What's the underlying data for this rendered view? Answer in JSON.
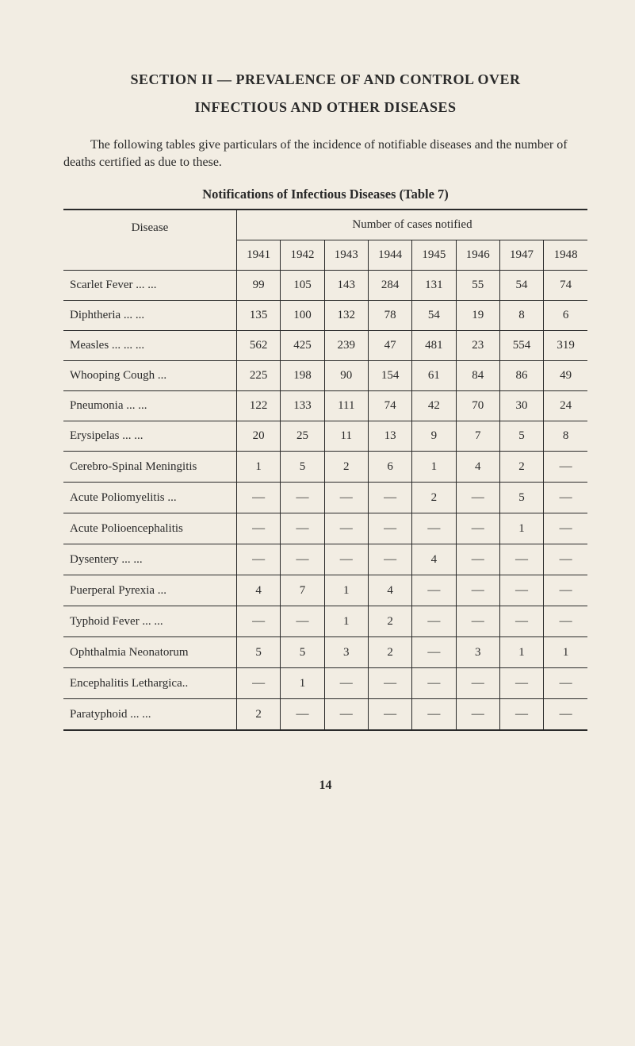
{
  "section_heading_line1": "SECTION II — PREVALENCE OF AND CONTROL OVER",
  "section_heading_line2": "INFECTIOUS AND OTHER DISEASES",
  "intro_para": "The following tables give particulars of the incidence of notifiable diseases and the number of deaths certified as due to these.",
  "table_title": "Notifications of Infectious Diseases (Table 7)",
  "table": {
    "type": "table",
    "disease_header": "Disease",
    "number_header": "Number of cases notified",
    "years": [
      "1941",
      "1942",
      "1943",
      "1944",
      "1945",
      "1946",
      "1947",
      "1948"
    ],
    "dash": "—",
    "rows": [
      {
        "label": "Scarlet Fever   ...      ...",
        "values": [
          "99",
          "105",
          "143",
          "284",
          "131",
          "55",
          "54",
          "74"
        ]
      },
      {
        "label": "Diphtheria        ...      ...",
        "values": [
          "135",
          "100",
          "132",
          "78",
          "54",
          "19",
          "8",
          "6"
        ]
      },
      {
        "label": "Measles   ...      ...      ...",
        "values": [
          "562",
          "425",
          "239",
          "47",
          "481",
          "23",
          "554",
          "319"
        ]
      },
      {
        "label": "Whooping Cough      ...",
        "values": [
          "225",
          "198",
          "90",
          "154",
          "61",
          "84",
          "86",
          "49"
        ]
      },
      {
        "label": "Pneumonia        ...      ...",
        "values": [
          "122",
          "133",
          "111",
          "74",
          "42",
          "70",
          "30",
          "24"
        ]
      },
      {
        "label": "Erysipelas          ...      ...",
        "values": [
          "20",
          "25",
          "11",
          "13",
          "9",
          "7",
          "5",
          "8"
        ]
      },
      {
        "label": "Cerebro-Spinal Meningitis",
        "values": [
          "1",
          "5",
          "2",
          "6",
          "1",
          "4",
          "2",
          "—"
        ]
      },
      {
        "label": "Acute Poliomyelitis  ...",
        "values": [
          "—",
          "—",
          "—",
          "—",
          "2",
          "—",
          "5",
          "—"
        ]
      },
      {
        "label": "Acute  Polioencephalitis",
        "values": [
          "—",
          "—",
          "—",
          "—",
          "—",
          "—",
          "1",
          "—"
        ]
      },
      {
        "label": "Dysentery          ...      ...",
        "values": [
          "—",
          "—",
          "—",
          "—",
          "4",
          "—",
          "—",
          "—"
        ]
      },
      {
        "label": "Puerperal  Pyrexia     ...",
        "values": [
          "4",
          "7",
          "1",
          "4",
          "—",
          "—",
          "—",
          "—"
        ]
      },
      {
        "label": "Typhoid Fever ...      ...",
        "values": [
          "—",
          "—",
          "1",
          "2",
          "—",
          "—",
          "—",
          "—"
        ]
      },
      {
        "label": "Ophthalmia Neonatorum",
        "values": [
          "5",
          "5",
          "3",
          "2",
          "—",
          "3",
          "1",
          "1"
        ]
      },
      {
        "label": "Encephalitis Lethargica..",
        "values": [
          "—",
          "1",
          "—",
          "—",
          "—",
          "—",
          "—",
          "—"
        ]
      },
      {
        "label": "Paratyphoid      ...      ...",
        "values": [
          "2",
          "—",
          "—",
          "—",
          "—",
          "—",
          "—",
          "—"
        ]
      }
    ],
    "background_color": "#f2ede3",
    "border_color": "#2a2a2a",
    "text_color": "#2a2a2a",
    "header_fontsize": 15,
    "cell_fontsize": 15
  },
  "page_number": "14"
}
